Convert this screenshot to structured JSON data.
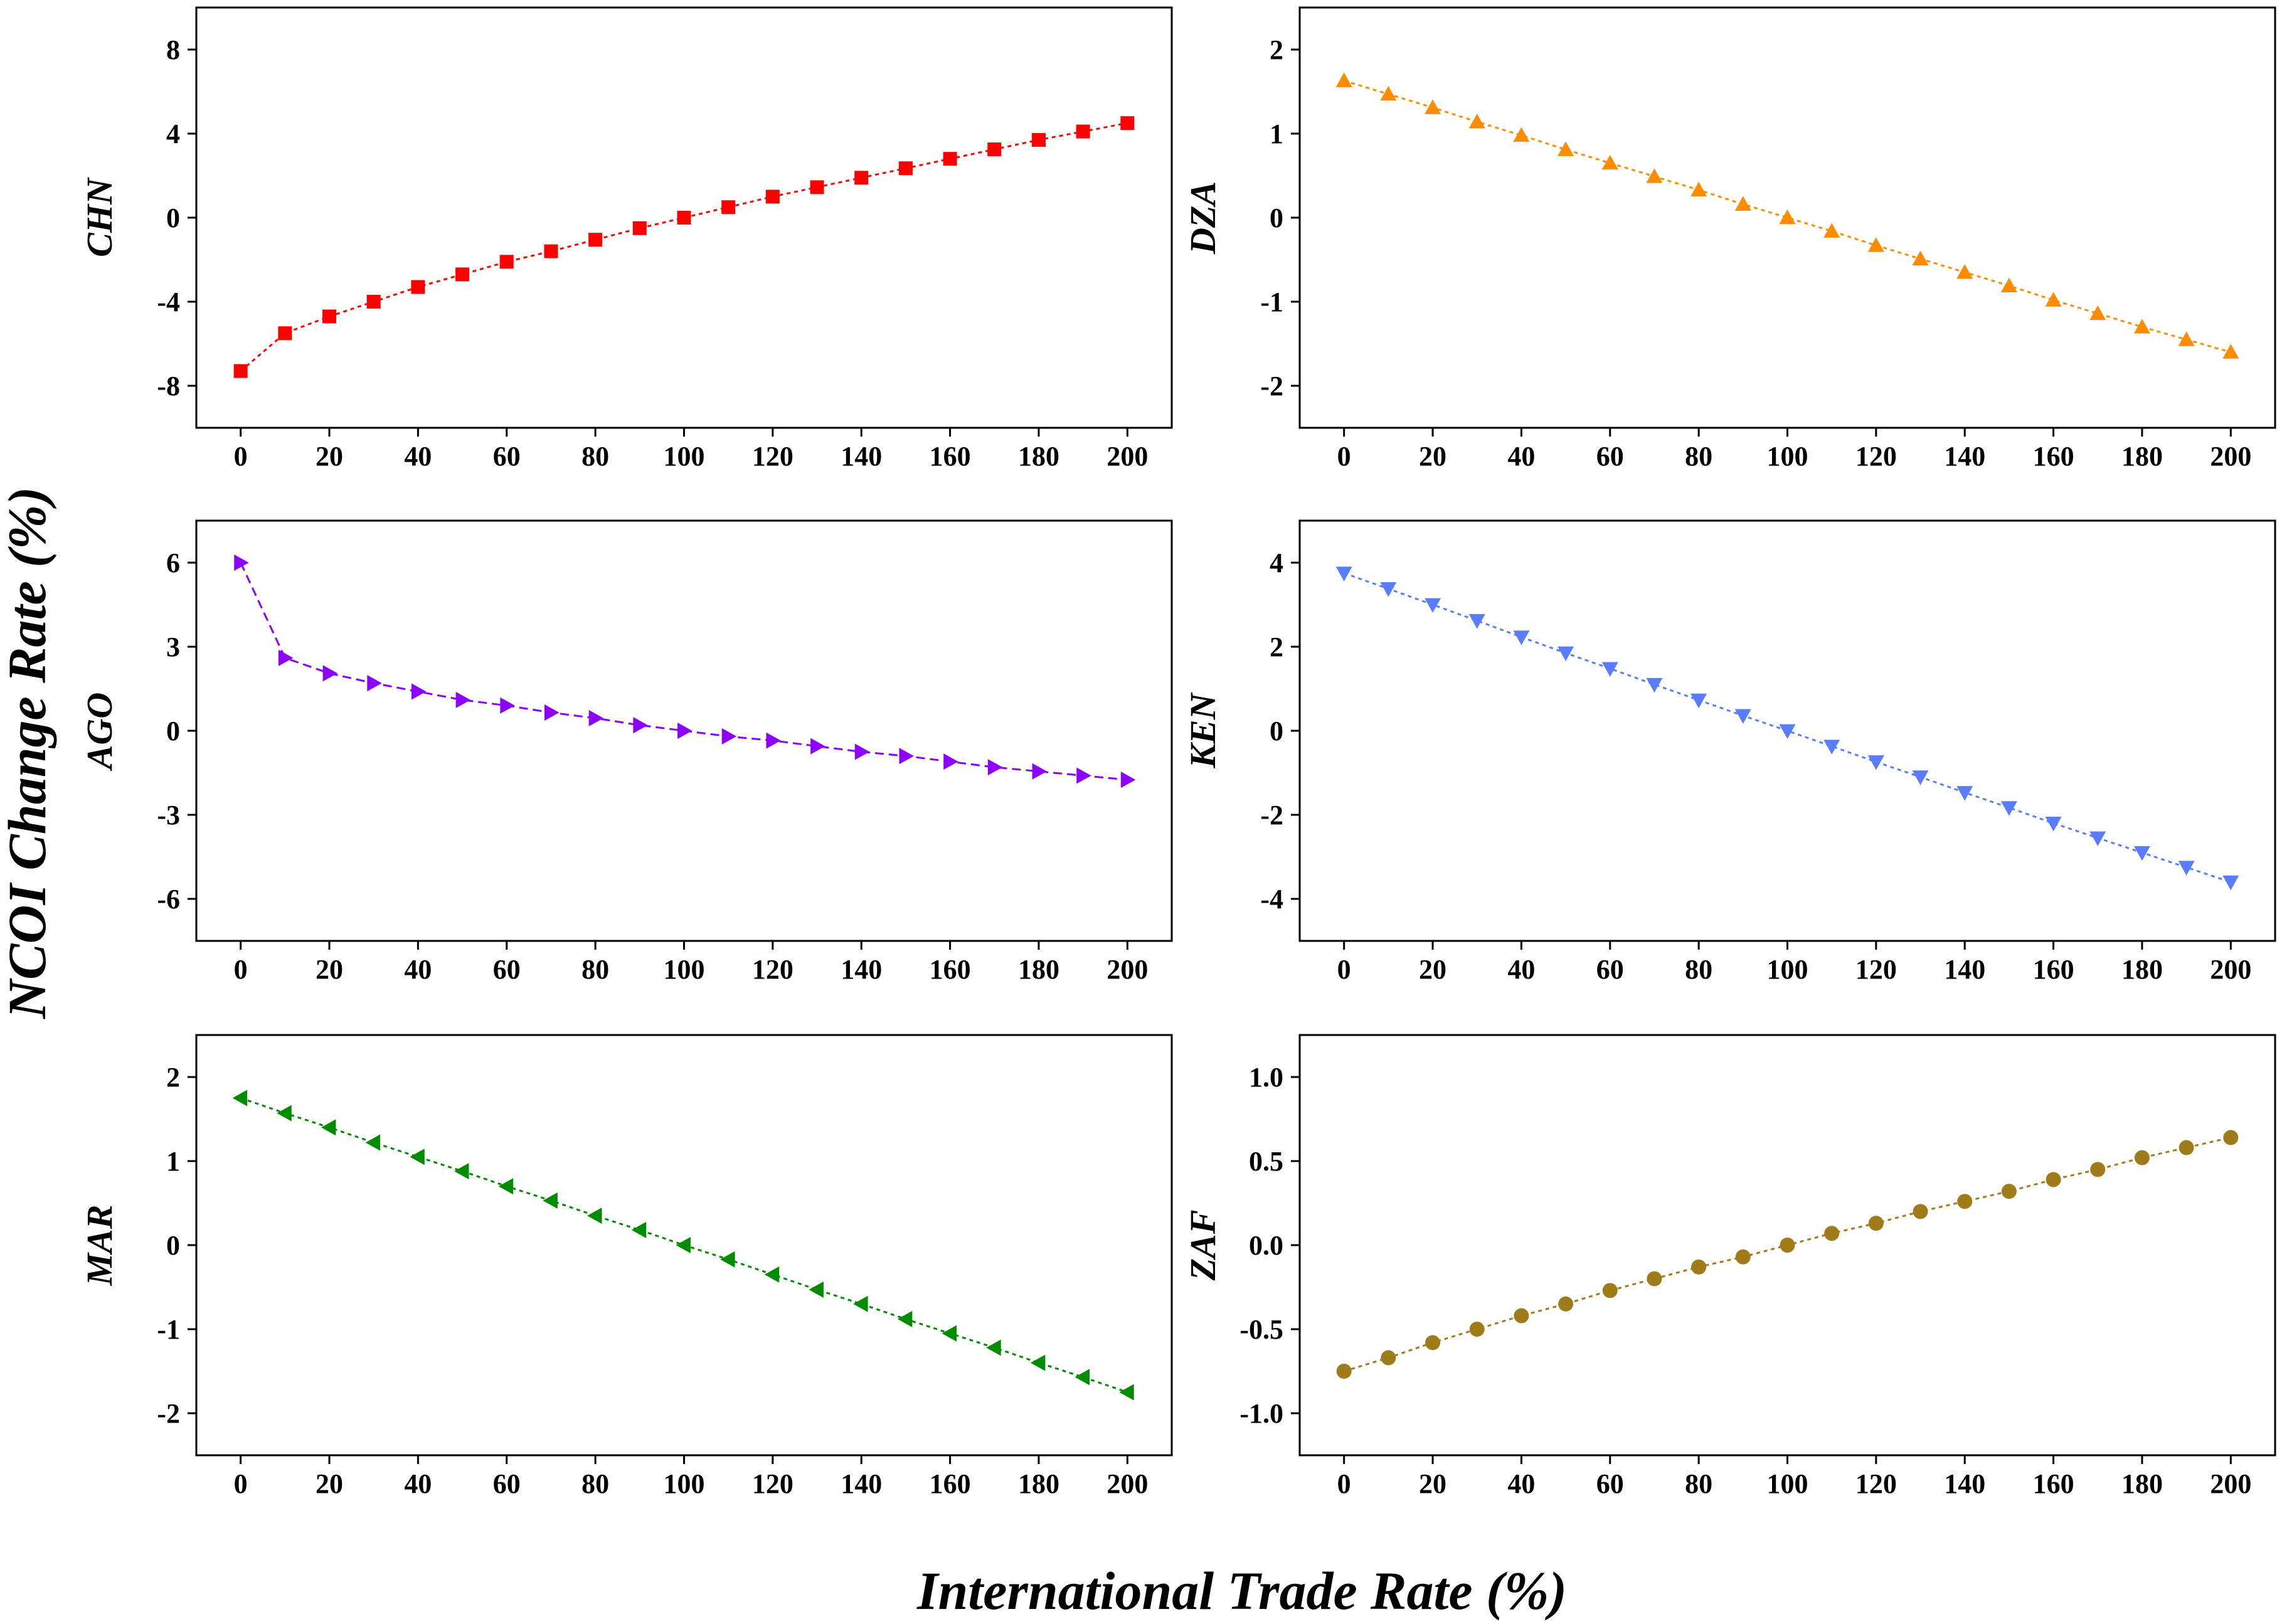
{
  "figure": {
    "ylabel": "NCOI Change Rate (%)",
    "xlabel": "International Trade Rate (%)"
  },
  "chart_data": [
    {
      "type": "line",
      "id": "chn",
      "ylabel": "CHN",
      "color": "#ff0000",
      "marker": "square",
      "line_style": "dotted",
      "x": [
        0,
        10,
        20,
        30,
        40,
        50,
        60,
        70,
        80,
        90,
        100,
        110,
        120,
        130,
        140,
        150,
        160,
        170,
        180,
        190,
        200
      ],
      "y": [
        -7.3,
        -5.5,
        -4.7,
        -4.0,
        -3.3,
        -2.7,
        -2.1,
        -1.6,
        -1.05,
        -0.5,
        0,
        0.5,
        1.0,
        1.45,
        1.9,
        2.35,
        2.8,
        3.25,
        3.7,
        4.1,
        4.5
      ],
      "xlim": [
        -10,
        210
      ],
      "ylim": [
        -10,
        10
      ],
      "xticks": [
        0,
        20,
        40,
        60,
        80,
        100,
        120,
        140,
        160,
        180,
        200
      ],
      "yticks": [
        -8,
        -4,
        0,
        4,
        8
      ]
    },
    {
      "type": "line",
      "id": "dza",
      "ylabel": "DZA",
      "color": "#ff8c00",
      "marker": "triangle-up",
      "line_style": "dotted",
      "x": [
        0,
        10,
        20,
        30,
        40,
        50,
        60,
        70,
        80,
        90,
        100,
        110,
        120,
        130,
        140,
        150,
        160,
        170,
        180,
        190,
        200
      ],
      "y": [
        1.63,
        1.47,
        1.31,
        1.14,
        0.98,
        0.81,
        0.65,
        0.49,
        0.33,
        0.16,
        0,
        -0.16,
        -0.33,
        -0.49,
        -0.65,
        -0.81,
        -0.98,
        -1.14,
        -1.3,
        -1.45,
        -1.6
      ],
      "xlim": [
        -10,
        210
      ],
      "ylim": [
        -2.5,
        2.5
      ],
      "xticks": [
        0,
        20,
        40,
        60,
        80,
        100,
        120,
        140,
        160,
        180,
        200
      ],
      "yticks": [
        -2,
        -1,
        0,
        1,
        2
      ]
    },
    {
      "type": "line",
      "id": "ago",
      "ylabel": "AGO",
      "color": "#8b00ff",
      "marker": "triangle-right",
      "line_style": "dashed",
      "x": [
        0,
        10,
        20,
        30,
        40,
        50,
        60,
        70,
        80,
        90,
        100,
        110,
        120,
        130,
        140,
        150,
        160,
        170,
        180,
        190,
        200
      ],
      "y": [
        6.0,
        2.6,
        2.05,
        1.7,
        1.4,
        1.1,
        0.9,
        0.65,
        0.45,
        0.2,
        0,
        -0.2,
        -0.35,
        -0.55,
        -0.75,
        -0.9,
        -1.1,
        -1.3,
        -1.45,
        -1.6,
        -1.75
      ],
      "xlim": [
        -10,
        210
      ],
      "ylim": [
        -7.5,
        7.5
      ],
      "xticks": [
        0,
        20,
        40,
        60,
        80,
        100,
        120,
        140,
        160,
        180,
        200
      ],
      "yticks": [
        -6,
        -3,
        0,
        3,
        6
      ]
    },
    {
      "type": "line",
      "id": "ken",
      "ylabel": "KEN",
      "color": "#5a7dff",
      "marker": "triangle-down",
      "line_style": "dotted",
      "x": [
        0,
        10,
        20,
        30,
        40,
        50,
        60,
        70,
        80,
        90,
        100,
        110,
        120,
        130,
        140,
        150,
        160,
        170,
        180,
        190,
        200
      ],
      "y": [
        3.75,
        3.38,
        3.0,
        2.62,
        2.23,
        1.85,
        1.48,
        1.1,
        0.73,
        0.36,
        0,
        -0.37,
        -0.74,
        -1.1,
        -1.47,
        -1.83,
        -2.2,
        -2.55,
        -2.9,
        -3.25,
        -3.6
      ],
      "xlim": [
        -10,
        210
      ],
      "ylim": [
        -5,
        5
      ],
      "xticks": [
        0,
        20,
        40,
        60,
        80,
        100,
        120,
        140,
        160,
        180,
        200
      ],
      "yticks": [
        -4,
        -2,
        0,
        2,
        4
      ]
    },
    {
      "type": "line",
      "id": "mar",
      "ylabel": "MAR",
      "color": "#008c00",
      "marker": "triangle-left",
      "line_style": "dotted",
      "x": [
        0,
        10,
        20,
        30,
        40,
        50,
        60,
        70,
        80,
        90,
        100,
        110,
        120,
        130,
        140,
        150,
        160,
        170,
        180,
        190,
        200
      ],
      "y": [
        1.75,
        1.57,
        1.4,
        1.22,
        1.05,
        0.88,
        0.7,
        0.53,
        0.35,
        0.18,
        0,
        -0.17,
        -0.35,
        -0.53,
        -0.7,
        -0.88,
        -1.05,
        -1.22,
        -1.4,
        -1.57,
        -1.75
      ],
      "xlim": [
        -10,
        210
      ],
      "ylim": [
        -2.5,
        2.5
      ],
      "xticks": [
        0,
        20,
        40,
        60,
        80,
        100,
        120,
        140,
        160,
        180,
        200
      ],
      "yticks": [
        -2,
        -1,
        0,
        1,
        2
      ]
    },
    {
      "type": "line",
      "id": "zaf",
      "ylabel": "ZAF",
      "color": "#a07b1a",
      "marker": "circle",
      "line_style": "dotted",
      "x": [
        0,
        10,
        20,
        30,
        40,
        50,
        60,
        70,
        80,
        90,
        100,
        110,
        120,
        130,
        140,
        150,
        160,
        170,
        180,
        190,
        200
      ],
      "y": [
        -0.75,
        -0.67,
        -0.58,
        -0.5,
        -0.42,
        -0.35,
        -0.27,
        -0.2,
        -0.13,
        -0.07,
        0,
        0.07,
        0.13,
        0.2,
        0.26,
        0.32,
        0.39,
        0.45,
        0.52,
        0.58,
        0.64
      ],
      "xlim": [
        -10,
        210
      ],
      "ylim": [
        -1.25,
        1.25
      ],
      "xticks": [
        0,
        20,
        40,
        60,
        80,
        100,
        120,
        140,
        160,
        180,
        200
      ],
      "yticks": [
        -1.0,
        -0.5,
        0.0,
        0.5,
        1.0
      ],
      "ytick_decimals": 1
    }
  ]
}
